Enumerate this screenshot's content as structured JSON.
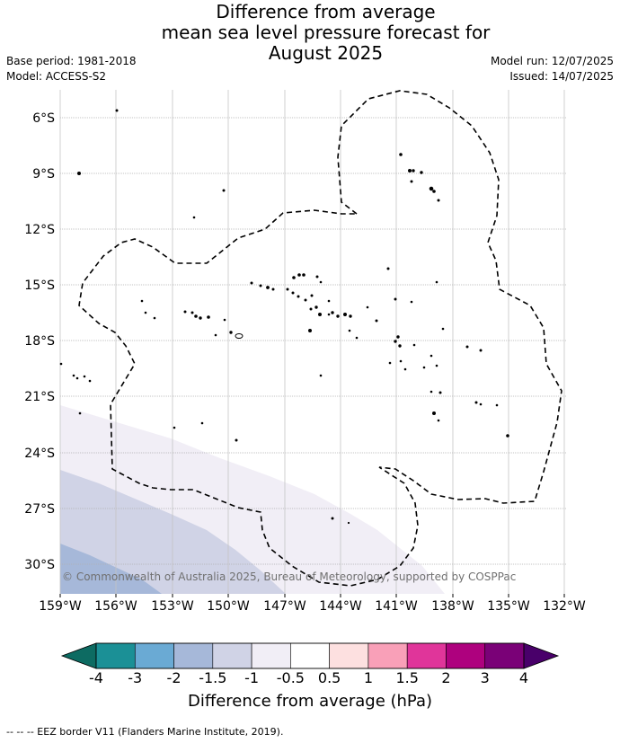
{
  "title_lines": [
    "Difference from average",
    "mean sea level pressure forecast for",
    "August 2025"
  ],
  "base_period": "Base period: 1981-2018",
  "model": "Model: ACCESS-S2",
  "model_run": "Model run: 12/07/2025",
  "issued": "Issued: 14/07/2025",
  "copyright": "© Commonwealth of Australia 2025, Bureau of Meteorology, supported by COSPPac",
  "lat_labels": [
    "6°S",
    "9°S",
    "12°S",
    "15°S",
    "18°S",
    "21°S",
    "24°S",
    "27°S",
    "30°S"
  ],
  "lon_labels": [
    "159°W",
    "156°W",
    "153°W",
    "150°W",
    "147°W",
    "144°W",
    "141°W",
    "138°W",
    "135°W",
    "132°W"
  ],
  "colorbar": {
    "title": "Difference from average (hPa)",
    "tick_labels": [
      "-4",
      "-3",
      "-2",
      "-1.5",
      "-1",
      "-0.5",
      "0.5",
      "1",
      "1.5",
      "2",
      "3",
      "4"
    ],
    "colors": {
      "below_min": "#0d6b62",
      "bins": [
        "#1b9096",
        "#6aaad4",
        "#a6b8d9",
        "#d0d3e6",
        "#f1eef6",
        "#ffffff",
        "#fde0e0",
        "#f9a0b8",
        "#e0359a",
        "#ae017e",
        "#7a0177"
      ],
      "above_max": "#49006a"
    }
  },
  "footer": "--  --  -- EEZ border V11 (Flanders Marine Institute, 2019)."
}
